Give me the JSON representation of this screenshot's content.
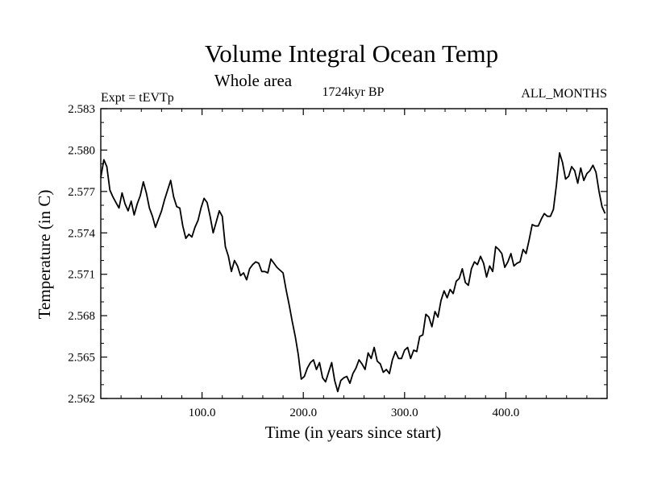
{
  "chart_data": {
    "type": "line",
    "title": "Volume Integral Ocean Temp",
    "subtitle": "Whole area",
    "annotations": {
      "left": "Expt = tEVTp",
      "center": "1724kyr BP",
      "right": "ALL_MONTHS"
    },
    "xlabel": "Time (in years since start)",
    "ylabel": "Temperature (in C)",
    "xlim": [
      0,
      500
    ],
    "ylim": [
      2.562,
      2.583
    ],
    "xticks": [
      100,
      200,
      300,
      400
    ],
    "xtick_labels": [
      "100.0",
      "200.0",
      "300.0",
      "400.0"
    ],
    "yticks": [
      2.562,
      2.565,
      2.568,
      2.571,
      2.574,
      2.577,
      2.58,
      2.583
    ],
    "ytick_labels": [
      "2.562",
      "2.565",
      "2.568",
      "2.571",
      "2.574",
      "2.577",
      "2.580",
      "2.583"
    ],
    "series": [
      {
        "name": "Volume integral ocean temperature",
        "color": "#000000",
        "x": [
          0,
          3,
          6,
          9,
          12,
          15,
          18,
          21,
          24,
          27,
          30,
          33,
          36,
          39,
          42,
          45,
          48,
          51,
          54,
          57,
          60,
          63,
          66,
          69,
          72,
          75,
          78,
          81,
          84,
          87,
          90,
          93,
          96,
          99,
          102,
          105,
          108,
          111,
          114,
          117,
          120,
          123,
          126,
          129,
          132,
          135,
          138,
          141,
          144,
          147,
          150,
          153,
          156,
          159,
          162,
          165,
          168,
          171,
          174,
          177,
          180,
          183,
          186,
          189,
          192,
          195,
          198,
          201,
          204,
          207,
          210,
          213,
          216,
          219,
          222,
          225,
          228,
          231,
          234,
          237,
          240,
          243,
          246,
          249,
          252,
          255,
          258,
          261,
          264,
          267,
          270,
          273,
          276,
          279,
          282,
          285,
          288,
          291,
          294,
          297,
          300,
          303,
          306,
          309,
          312,
          315,
          318,
          321,
          324,
          327,
          330,
          333,
          336,
          339,
          342,
          345,
          348,
          351,
          354,
          357,
          360,
          363,
          366,
          369,
          372,
          375,
          378,
          381,
          384,
          387,
          390,
          393,
          396,
          399,
          402,
          405,
          408,
          411,
          414,
          417,
          420,
          423,
          426,
          429,
          432,
          435,
          438,
          441,
          444,
          447,
          450,
          453,
          456,
          459,
          462,
          465,
          468,
          471,
          474,
          477,
          480,
          483,
          486,
          489,
          492,
          495,
          498
        ],
        "y": [
          2.578,
          2.5793,
          2.5788,
          2.5771,
          2.5766,
          2.5762,
          2.5758,
          2.5769,
          2.5761,
          2.5756,
          2.5763,
          2.5753,
          2.5761,
          2.5767,
          2.5777,
          2.5769,
          2.5758,
          2.5752,
          2.5744,
          2.575,
          2.5756,
          2.5764,
          2.5771,
          2.5778,
          2.5766,
          2.5759,
          2.5758,
          2.5745,
          2.5736,
          2.5739,
          2.5737,
          2.5744,
          2.5749,
          2.5758,
          2.5765,
          2.5762,
          2.5752,
          2.574,
          2.5748,
          2.5756,
          2.5752,
          2.573,
          2.5723,
          2.5712,
          2.572,
          2.5716,
          2.5709,
          2.5711,
          2.5706,
          2.5714,
          2.5717,
          2.5719,
          2.5718,
          2.5712,
          2.5712,
          2.5711,
          2.5721,
          2.5718,
          2.5715,
          2.5713,
          2.5711,
          2.5699,
          2.5688,
          2.5676,
          2.5665,
          2.5652,
          2.5634,
          2.5636,
          2.5642,
          2.5646,
          2.5648,
          2.5641,
          2.5646,
          2.5635,
          2.5632,
          2.5639,
          2.5646,
          2.5633,
          2.5625,
          2.5633,
          2.5635,
          2.5636,
          2.5631,
          2.5638,
          2.5642,
          2.5648,
          2.5645,
          2.5641,
          2.5653,
          2.5649,
          2.5657,
          2.5647,
          2.5645,
          2.5639,
          2.5641,
          2.5638,
          2.5648,
          2.5654,
          2.5649,
          2.5649,
          2.5655,
          2.5657,
          2.5649,
          2.5655,
          2.5654,
          2.5665,
          2.5666,
          2.5681,
          2.5679,
          2.5672,
          2.5683,
          2.5679,
          2.5691,
          2.5698,
          2.5693,
          2.5699,
          2.5696,
          2.5705,
          2.5707,
          2.5714,
          2.5704,
          2.5702,
          2.5714,
          2.5719,
          2.5717,
          2.5723,
          2.5718,
          2.5708,
          2.5716,
          2.5712,
          2.573,
          2.5728,
          2.5725,
          2.5715,
          2.5719,
          2.5725,
          2.5716,
          2.5718,
          2.5719,
          2.5728,
          2.5725,
          2.5735,
          2.5746,
          2.5745,
          2.5745,
          2.575,
          2.5754,
          2.5752,
          2.5752,
          2.5757,
          2.5775,
          2.5798,
          2.5791,
          2.5779,
          2.5781,
          2.5788,
          2.5785,
          2.5776,
          2.5787,
          2.5778,
          2.5783,
          2.5785,
          2.5789,
          2.5784,
          2.577,
          2.5759,
          2.5754
        ]
      }
    ]
  }
}
